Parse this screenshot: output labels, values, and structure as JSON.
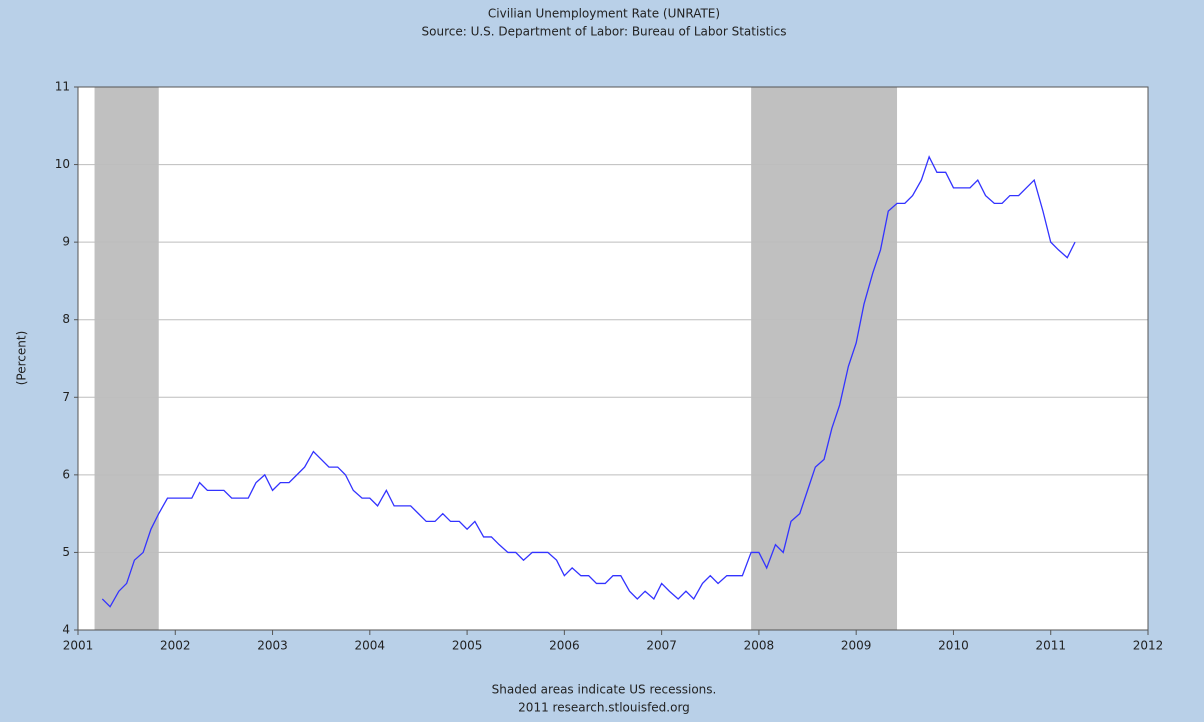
{
  "chart_data": {
    "type": "line",
    "title": "Civilian Unemployment Rate (UNRATE)",
    "subtitle": "Source: U.S. Department of Labor: Bureau of Labor Statistics",
    "y_label": "(Percent)",
    "note": "Shaded areas indicate US recessions.",
    "credit": "2011 research.stlouisfed.org",
    "xlim": [
      2001,
      2012
    ],
    "xticks": [
      2001,
      2002,
      2003,
      2004,
      2005,
      2006,
      2007,
      2008,
      2009,
      2010,
      2011,
      2012
    ],
    "ylim": [
      4,
      11
    ],
    "yticks": [
      4,
      5,
      6,
      7,
      8,
      9,
      10,
      11
    ],
    "grid": true,
    "shaded_regions": [
      [
        2001.17,
        2001.83
      ],
      [
        2007.92,
        2009.42
      ]
    ],
    "shade_color": "#c0c0c0",
    "series": [
      {
        "name": "UNRATE",
        "color": "#3333ff",
        "x": [
          2001.25,
          2001.33,
          2001.42,
          2001.5,
          2001.58,
          2001.67,
          2001.75,
          2001.83,
          2001.92,
          2002.0,
          2002.08,
          2002.17,
          2002.25,
          2002.33,
          2002.42,
          2002.5,
          2002.58,
          2002.67,
          2002.75,
          2002.83,
          2002.92,
          2003.0,
          2003.08,
          2003.17,
          2003.25,
          2003.33,
          2003.42,
          2003.5,
          2003.58,
          2003.67,
          2003.75,
          2003.83,
          2003.92,
          2004.0,
          2004.08,
          2004.17,
          2004.25,
          2004.33,
          2004.42,
          2004.5,
          2004.58,
          2004.67,
          2004.75,
          2004.83,
          2004.92,
          2005.0,
          2005.08,
          2005.17,
          2005.25,
          2005.33,
          2005.42,
          2005.5,
          2005.58,
          2005.67,
          2005.75,
          2005.83,
          2005.92,
          2006.0,
          2006.08,
          2006.17,
          2006.25,
          2006.33,
          2006.42,
          2006.5,
          2006.58,
          2006.67,
          2006.75,
          2006.83,
          2006.92,
          2007.0,
          2007.08,
          2007.17,
          2007.25,
          2007.33,
          2007.42,
          2007.5,
          2007.58,
          2007.67,
          2007.75,
          2007.83,
          2007.92,
          2008.0,
          2008.08,
          2008.17,
          2008.25,
          2008.33,
          2008.42,
          2008.5,
          2008.58,
          2008.67,
          2008.75,
          2008.83,
          2008.92,
          2009.0,
          2009.08,
          2009.17,
          2009.25,
          2009.33,
          2009.42,
          2009.5,
          2009.58,
          2009.67,
          2009.75,
          2009.83,
          2009.92,
          2010.0,
          2010.08,
          2010.17,
          2010.25,
          2010.33,
          2010.42,
          2010.5,
          2010.58,
          2010.67,
          2010.75,
          2010.83,
          2010.92,
          2011.0,
          2011.08,
          2011.17,
          2011.25
        ],
        "values": [
          4.4,
          4.3,
          4.5,
          4.6,
          4.9,
          5.0,
          5.3,
          5.5,
          5.7,
          5.7,
          5.7,
          5.7,
          5.9,
          5.8,
          5.8,
          5.8,
          5.7,
          5.7,
          5.7,
          5.9,
          6.0,
          5.8,
          5.9,
          5.9,
          6.0,
          6.1,
          6.3,
          6.2,
          6.1,
          6.1,
          6.0,
          5.8,
          5.7,
          5.7,
          5.6,
          5.8,
          5.6,
          5.6,
          5.6,
          5.5,
          5.4,
          5.4,
          5.5,
          5.4,
          5.4,
          5.3,
          5.4,
          5.2,
          5.2,
          5.1,
          5.0,
          5.0,
          4.9,
          5.0,
          5.0,
          5.0,
          4.9,
          4.7,
          4.8,
          4.7,
          4.7,
          4.6,
          4.6,
          4.7,
          4.7,
          4.5,
          4.4,
          4.5,
          4.4,
          4.6,
          4.5,
          4.4,
          4.5,
          4.4,
          4.6,
          4.7,
          4.6,
          4.7,
          4.7,
          4.7,
          5.0,
          5.0,
          4.8,
          5.1,
          5.0,
          5.4,
          5.5,
          5.8,
          6.1,
          6.2,
          6.6,
          6.9,
          7.4,
          7.7,
          8.2,
          8.6,
          8.9,
          9.4,
          9.5,
          9.5,
          9.6,
          9.8,
          10.1,
          9.9,
          9.9,
          9.7,
          9.7,
          9.7,
          9.8,
          9.6,
          9.5,
          9.5,
          9.6,
          9.6,
          9.7,
          9.8,
          9.4,
          9.0,
          8.9,
          8.8,
          9.0
        ]
      }
    ]
  }
}
